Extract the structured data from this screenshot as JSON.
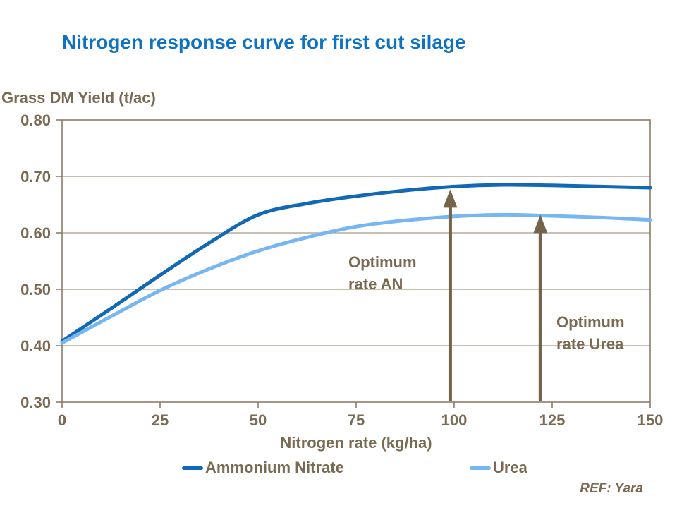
{
  "page": {
    "ref": "REF: Yara"
  },
  "colors": {
    "title_blue": "#0e72c3",
    "text_brown": "#7b6a52",
    "axis": "#8c7c68",
    "grid": "#a89a88",
    "arrow_brown": "#756449",
    "ammonium_nitrate_blue": "#1168b6",
    "urea_blue": "#76b7f3",
    "background": "#ffffff"
  },
  "chart_data": {
    "type": "line",
    "title": "Nitrogen response curve for first cut silage",
    "ylabel": "Grass DM Yield (t/ac)",
    "xlabel": "Nitrogen rate (kg/ha)",
    "xlim": [
      0,
      150
    ],
    "ylim": [
      0.3,
      0.8
    ],
    "xticks": [
      0,
      25,
      50,
      75,
      100,
      125,
      150
    ],
    "yticks": [
      0.3,
      0.4,
      0.5,
      0.6,
      0.7,
      0.8
    ],
    "ytick_labels": [
      "0.30",
      "0.40",
      "0.50",
      "0.60",
      "0.70",
      "0.80"
    ],
    "grid": "horizontal-interior",
    "legend_position": "bottom",
    "x": [
      0,
      12.5,
      25,
      37.5,
      50,
      62.5,
      75,
      87.5,
      100,
      112.5,
      125,
      137.5,
      150
    ],
    "series": [
      {
        "name": "Ammonium Nitrate",
        "color": "#1168b6",
        "values": [
          0.408,
          0.466,
          0.525,
          0.582,
          0.632,
          0.652,
          0.665,
          0.675,
          0.682,
          0.685,
          0.684,
          0.682,
          0.68
        ]
      },
      {
        "name": "Urea",
        "color": "#76b7f3",
        "values": [
          0.405,
          0.452,
          0.498,
          0.536,
          0.568,
          0.592,
          0.611,
          0.622,
          0.629,
          0.632,
          0.63,
          0.627,
          0.623
        ]
      }
    ],
    "annotations": [
      {
        "label": "Optimum\nrate AN",
        "arrow_x": 99,
        "arrow_tip_value": 0.677
      },
      {
        "label": "Optimum\nrate Urea",
        "arrow_x": 122,
        "arrow_tip_value": 0.632
      }
    ]
  }
}
